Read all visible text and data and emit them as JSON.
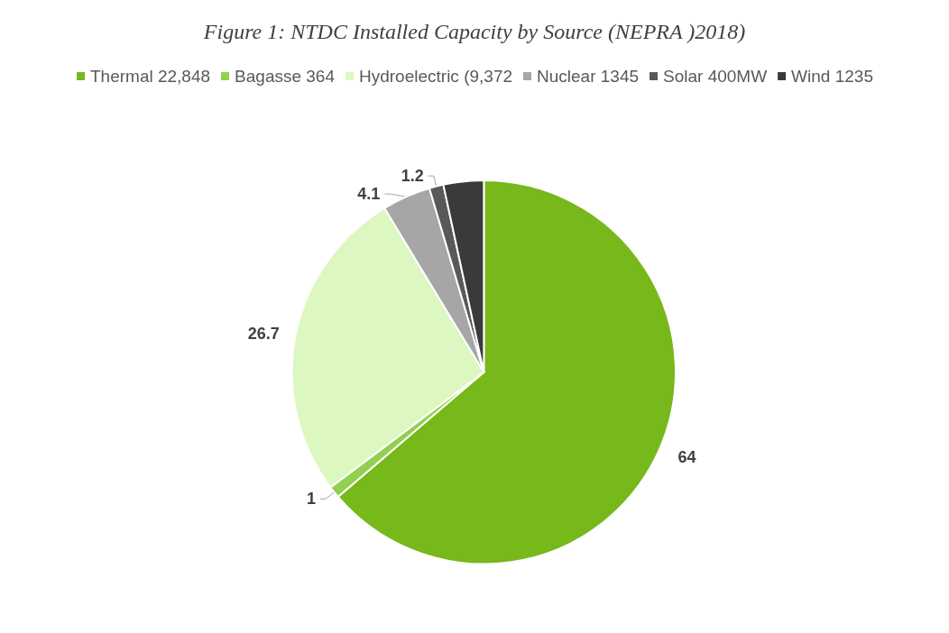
{
  "chart_data": {
    "type": "pie",
    "title": "Figure 1: NTDC Installed Capacity by Source (NEPRA )2018)",
    "categories": [
      "Thermal 22,848",
      "Bagasse 364",
      "Hydroelectric (9,372",
      "Nuclear 1345",
      "Solar 400MW",
      "Wind 1235"
    ],
    "values": [
      64,
      1,
      26.7,
      4.1,
      1.2,
      3.4
    ],
    "value_labels": [
      "64",
      "1",
      "26.7",
      "4.1",
      "1.2",
      null
    ],
    "colors": [
      "#77b81a",
      "#92d050",
      "#ddf7c0",
      "#a6a6a6",
      "#595959",
      "#3a3a3a"
    ],
    "legend": "top"
  }
}
